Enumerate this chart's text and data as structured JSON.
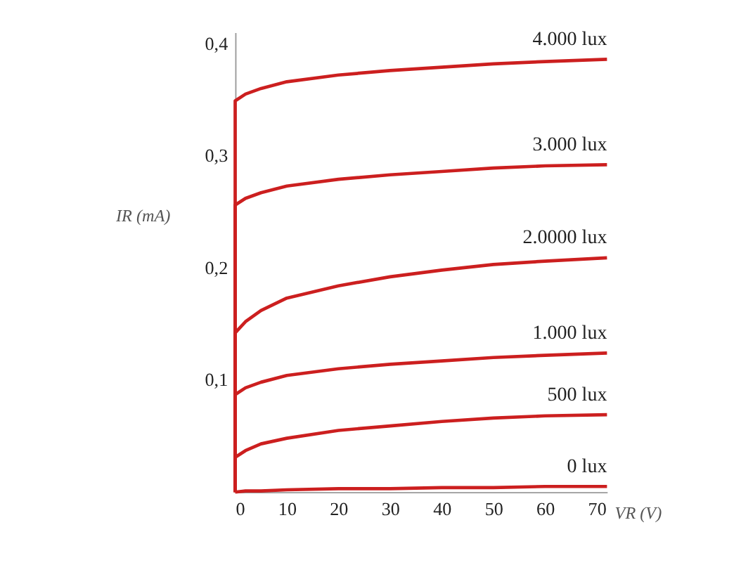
{
  "chart_data": {
    "type": "line",
    "xlabel": "VR (V)",
    "ylabel": "IR (mA)",
    "x": [
      0,
      0,
      2,
      5,
      10,
      20,
      30,
      40,
      50,
      60,
      72
    ],
    "series": [
      {
        "name": "4.000 lux",
        "color": "#cc1f1f",
        "values": [
          0,
          0.349,
          0.355,
          0.36,
          0.366,
          0.372,
          0.376,
          0.379,
          0.382,
          0.384,
          0.386
        ]
      },
      {
        "name": "3.000 lux",
        "color": "#cc1f1f",
        "values": [
          0,
          0.256,
          0.262,
          0.267,
          0.273,
          0.279,
          0.283,
          0.286,
          0.289,
          0.291,
          0.292
        ]
      },
      {
        "name": "2.0000 lux",
        "color": "#cc1f1f",
        "values": [
          0,
          0.142,
          0.152,
          0.162,
          0.173,
          0.184,
          0.192,
          0.198,
          0.203,
          0.206,
          0.209
        ]
      },
      {
        "name": "1.000 lux",
        "color": "#cc1f1f",
        "values": [
          0,
          0.087,
          0.093,
          0.098,
          0.104,
          0.11,
          0.114,
          0.117,
          0.12,
          0.122,
          0.124
        ]
      },
      {
        "name": "500 lux",
        "color": "#cc1f1f",
        "values": [
          0,
          0.031,
          0.037,
          0.043,
          0.048,
          0.055,
          0.059,
          0.063,
          0.066,
          0.068,
          0.069
        ]
      },
      {
        "name": "0 lux",
        "color": "#cc1f1f",
        "values": [
          0,
          0.0,
          0.001,
          0.001,
          0.002,
          0.003,
          0.003,
          0.004,
          0.004,
          0.005,
          0.005
        ]
      }
    ],
    "xlim": [
      0,
      72
    ],
    "xticks": [
      0,
      10,
      20,
      30,
      40,
      50,
      60,
      70
    ],
    "ylim": [
      0,
      0.41
    ],
    "yticks": [
      {
        "value": 0.1,
        "label": "0,1"
      },
      {
        "value": 0.2,
        "label": "0,2"
      },
      {
        "value": 0.3,
        "label": "0,3"
      },
      {
        "value": 0.4,
        "label": "0,4"
      }
    ],
    "grid": false,
    "legend": false,
    "marker": "none",
    "line_style": "solid"
  }
}
